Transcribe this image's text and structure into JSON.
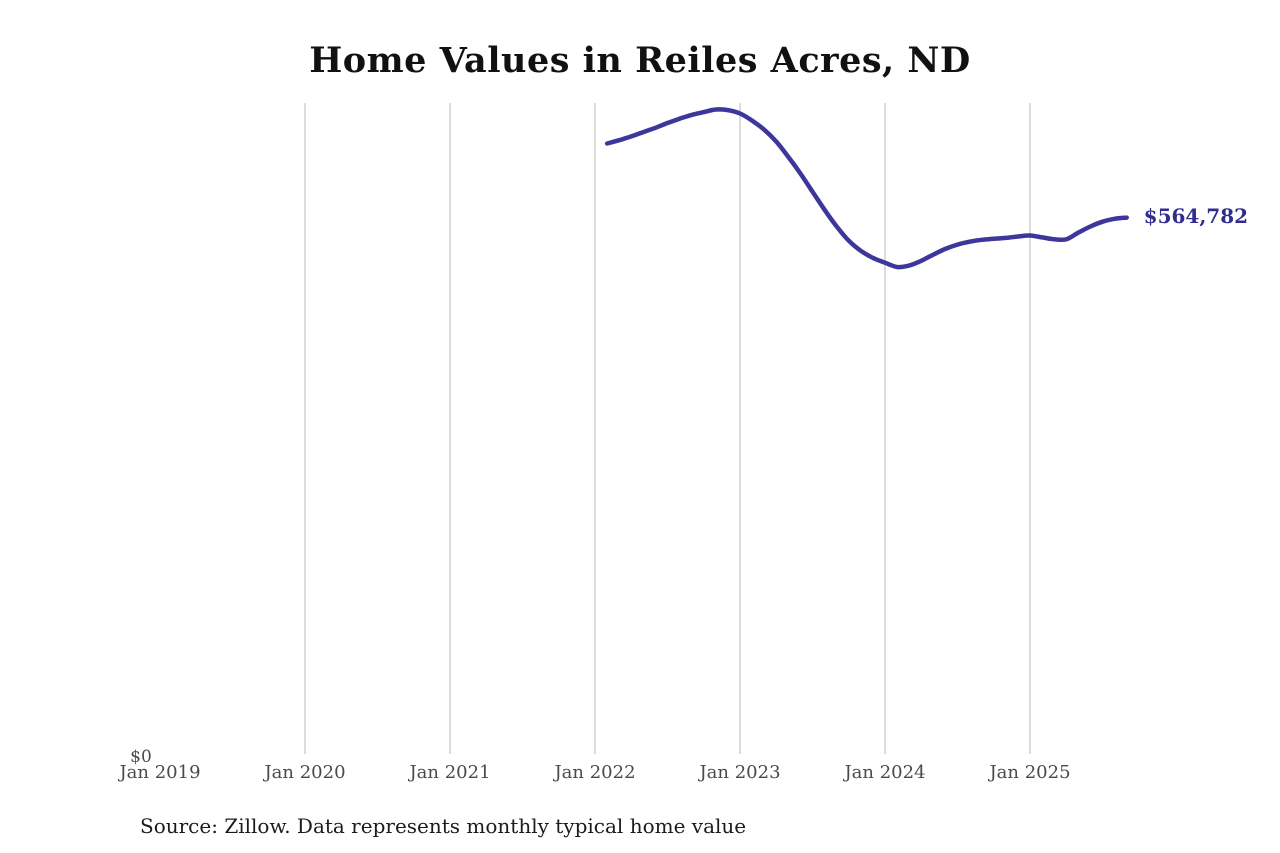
{
  "chart": {
    "title": "Home Values in Reiles Acres, ND",
    "y_zero_label": "$0",
    "source": "Source: Zillow. Data represents monthly typical home value",
    "colors": {
      "line": "#3e379b",
      "end_label": "#302c90",
      "gridline": "#cccccc",
      "tick_label": "#4a4a4a",
      "title": "#111111",
      "source": "#1c1c1c"
    }
  },
  "chart_data": {
    "type": "line",
    "title": "Home Values in Reiles Acres, ND",
    "xlabel": "",
    "ylabel": "",
    "ylim": [
      0,
      685000
    ],
    "grid": "vertical-only",
    "legend": "none",
    "end_value_label": "$564,782",
    "x_ticks": [
      {
        "label": "Jan 2019",
        "month_offset": 0,
        "gridline": false
      },
      {
        "label": "Jan 2020",
        "month_offset": 12,
        "gridline": true
      },
      {
        "label": "Jan 2021",
        "month_offset": 24,
        "gridline": true
      },
      {
        "label": "Jan 2022",
        "month_offset": 36,
        "gridline": true
      },
      {
        "label": "Jan 2023",
        "month_offset": 48,
        "gridline": true
      },
      {
        "label": "Jan 2024",
        "month_offset": 60,
        "gridline": true
      },
      {
        "label": "Jan 2025",
        "month_offset": 72,
        "gridline": true
      }
    ],
    "y_ticks": [
      {
        "label": "$0",
        "value": 0
      }
    ],
    "series": [
      {
        "name": "Monthly typical home value",
        "start_month": "2022-02",
        "end_month": "2025-09",
        "values": [
          642500,
          646000,
          650000,
          654500,
          659000,
          664000,
          668500,
          672500,
          675500,
          678200,
          677500,
          674000,
          666500,
          657000,
          644500,
          628500,
          611000,
          592000,
          573000,
          555500,
          540500,
          530000,
          522500,
          517500,
          513000,
          514500,
          519500,
          526000,
          532000,
          536500,
          539500,
          541500,
          542500,
          543500,
          545000,
          546000,
          544000,
          542000,
          542000,
          549000,
          555500,
          560500,
          563500,
          564782
        ]
      }
    ]
  }
}
